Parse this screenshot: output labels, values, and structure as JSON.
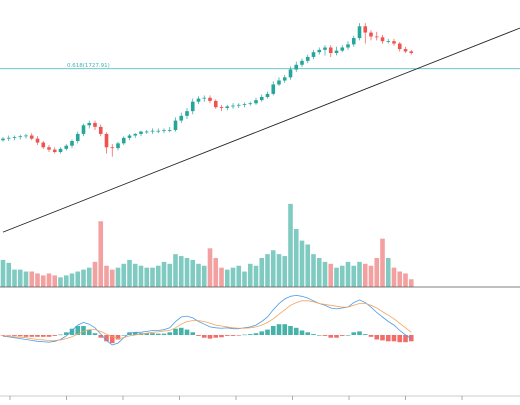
{
  "colors": {
    "up": "#26a69a",
    "down": "#ef5350",
    "volume_up": "#7fcbc2",
    "volume_down": "#f2a0a0",
    "macd_line": "#4c9be8",
    "signal_line": "#f5a35b",
    "fib_line": "#3bb3b3",
    "trendline": "#222222",
    "pane_separator": "#555555"
  },
  "chart_data": [
    {
      "type": "candlestick",
      "name": "price",
      "annotations": [
        {
          "kind": "horizontal-line",
          "label": "0.618(1727.91)",
          "value": 1727.91
        },
        {
          "kind": "trendline",
          "from": {
            "x": 0,
            "y": 1520
          },
          "to": {
            "x": 90,
            "y": 1780
          }
        }
      ],
      "ylim": [
        1510,
        1790
      ],
      "x": [
        0,
        1,
        2,
        3,
        4,
        5,
        6,
        7,
        8,
        9,
        10,
        11,
        12,
        13,
        14,
        15,
        16,
        17,
        18,
        19,
        20,
        21,
        22,
        23,
        24,
        25,
        26,
        27,
        28,
        29,
        30,
        31,
        32,
        33,
        34,
        35,
        36,
        37,
        38,
        39,
        40,
        41,
        42,
        43,
        44,
        45,
        46,
        47,
        48,
        49,
        50,
        51,
        52,
        53,
        54,
        55,
        56,
        57,
        58,
        59,
        60,
        61,
        62,
        63,
        64,
        65,
        66,
        67,
        68,
        69,
        70,
        71
      ],
      "open": [
        1637,
        1639,
        1640,
        1641,
        1642,
        1643,
        1639,
        1634,
        1628,
        1625,
        1622,
        1626,
        1630,
        1636,
        1645,
        1656,
        1659,
        1654,
        1645,
        1628,
        1627,
        1633,
        1640,
        1643,
        1645,
        1648,
        1648,
        1649,
        1649,
        1650,
        1650,
        1662,
        1668,
        1674,
        1686,
        1690,
        1691,
        1687,
        1679,
        1678,
        1680,
        1681,
        1682,
        1683,
        1684,
        1688,
        1692,
        1696,
        1708,
        1713,
        1717,
        1727,
        1733,
        1738,
        1743,
        1749,
        1752,
        1755,
        1748,
        1751,
        1755,
        1759,
        1767,
        1782,
        1774,
        1769,
        1768,
        1763,
        1763,
        1760,
        1753,
        1750
      ],
      "high": [
        1641,
        1643,
        1643,
        1644,
        1645,
        1646,
        1642,
        1636,
        1631,
        1628,
        1628,
        1632,
        1638,
        1648,
        1658,
        1662,
        1662,
        1657,
        1647,
        1632,
        1635,
        1642,
        1645,
        1646,
        1649,
        1650,
        1652,
        1652,
        1652,
        1654,
        1666,
        1672,
        1678,
        1690,
        1693,
        1694,
        1694,
        1689,
        1682,
        1682,
        1684,
        1684,
        1685,
        1686,
        1691,
        1695,
        1699,
        1712,
        1717,
        1720,
        1731,
        1737,
        1741,
        1746,
        1752,
        1755,
        1758,
        1758,
        1756,
        1758,
        1763,
        1770,
        1786,
        1786,
        1777,
        1775,
        1771,
        1766,
        1766,
        1762,
        1756,
        1752
      ],
      "low": [
        1635,
        1636,
        1637,
        1638,
        1639,
        1637,
        1631,
        1626,
        1622,
        1620,
        1620,
        1624,
        1627,
        1633,
        1642,
        1652,
        1650,
        1642,
        1620,
        1616,
        1624,
        1631,
        1637,
        1640,
        1642,
        1645,
        1645,
        1646,
        1646,
        1647,
        1648,
        1659,
        1664,
        1670,
        1683,
        1686,
        1684,
        1677,
        1674,
        1675,
        1677,
        1678,
        1679,
        1681,
        1682,
        1686,
        1690,
        1694,
        1706,
        1710,
        1714,
        1724,
        1730,
        1735,
        1740,
        1746,
        1745,
        1743,
        1745,
        1749,
        1752,
        1756,
        1764,
        1760,
        1764,
        1764,
        1760,
        1760,
        1757,
        1750,
        1748,
        1746
      ],
      "close": [
        1639,
        1640,
        1641,
        1642,
        1643,
        1639,
        1634,
        1628,
        1625,
        1622,
        1626,
        1630,
        1636,
        1645,
        1656,
        1659,
        1654,
        1645,
        1628,
        1627,
        1633,
        1640,
        1643,
        1645,
        1648,
        1648,
        1649,
        1649,
        1650,
        1650,
        1662,
        1668,
        1674,
        1686,
        1690,
        1691,
        1687,
        1679,
        1678,
        1680,
        1681,
        1682,
        1683,
        1684,
        1688,
        1692,
        1696,
        1708,
        1713,
        1717,
        1727,
        1733,
        1738,
        1743,
        1749,
        1752,
        1755,
        1748,
        1751,
        1755,
        1759,
        1767,
        1782,
        1774,
        1769,
        1768,
        1763,
        1763,
        1760,
        1753,
        1750,
        1748
      ]
    },
    {
      "type": "bar",
      "name": "volume",
      "ylim": [
        0,
        90
      ],
      "values": [
        28,
        25,
        18,
        18,
        16,
        16,
        14,
        12,
        14,
        12,
        10,
        12,
        14,
        16,
        18,
        20,
        26,
        68,
        22,
        18,
        20,
        24,
        28,
        24,
        22,
        20,
        20,
        22,
        26,
        24,
        34,
        32,
        30,
        28,
        24,
        22,
        40,
        30,
        20,
        18,
        20,
        22,
        16,
        24,
        22,
        30,
        34,
        38,
        34,
        32,
        86,
        60,
        48,
        44,
        34,
        30,
        26,
        24,
        20,
        22,
        26,
        22,
        26,
        24,
        22,
        30,
        50,
        30,
        20,
        16,
        14,
        8
      ]
    },
    {
      "type": "line",
      "name": "macd",
      "ylim": [
        -1,
        1
      ],
      "series": [
        {
          "key": "macd",
          "values": [
            -0.03,
            -0.04,
            -0.06,
            -0.08,
            -0.1,
            -0.12,
            -0.14,
            -0.15,
            -0.16,
            -0.14,
            -0.1,
            -0.02,
            0.1,
            0.22,
            0.28,
            0.24,
            0.16,
            0.02,
            -0.12,
            -0.22,
            -0.18,
            -0.06,
            0.04,
            0.06,
            0.06,
            0.08,
            0.1,
            0.1,
            0.12,
            0.16,
            0.3,
            0.4,
            0.42,
            0.38,
            0.3,
            0.24,
            0.18,
            0.16,
            0.15,
            0.16,
            0.14,
            0.14,
            0.16,
            0.18,
            0.22,
            0.3,
            0.4,
            0.56,
            0.7,
            0.8,
            0.86,
            0.88,
            0.86,
            0.82,
            0.76,
            0.7,
            0.66,
            0.6,
            0.58,
            0.6,
            0.62,
            0.72,
            0.78,
            0.72,
            0.62,
            0.5,
            0.4,
            0.3,
            0.22,
            0.1,
            0.0,
            -0.08
          ]
        },
        {
          "key": "signal",
          "values": [
            -0.02,
            -0.03,
            -0.04,
            -0.05,
            -0.06,
            -0.08,
            -0.1,
            -0.11,
            -0.12,
            -0.12,
            -0.11,
            -0.08,
            -0.04,
            0.02,
            0.08,
            0.12,
            0.12,
            0.08,
            0.02,
            -0.04,
            -0.08,
            -0.06,
            -0.02,
            0.0,
            0.02,
            0.04,
            0.06,
            0.07,
            0.09,
            0.1,
            0.16,
            0.24,
            0.3,
            0.32,
            0.32,
            0.3,
            0.26,
            0.22,
            0.2,
            0.18,
            0.16,
            0.15,
            0.15,
            0.16,
            0.18,
            0.22,
            0.28,
            0.36,
            0.46,
            0.56,
            0.66,
            0.72,
            0.76,
            0.76,
            0.74,
            0.7,
            0.68,
            0.66,
            0.64,
            0.62,
            0.62,
            0.66,
            0.7,
            0.7,
            0.66,
            0.6,
            0.52,
            0.44,
            0.36,
            0.26,
            0.16,
            0.06
          ]
        }
      ],
      "histogram": [
        -0.01,
        -0.01,
        -0.02,
        -0.03,
        -0.04,
        -0.04,
        -0.04,
        -0.04,
        -0.04,
        -0.02,
        0.01,
        0.06,
        0.14,
        0.2,
        0.2,
        0.12,
        0.04,
        -0.06,
        -0.14,
        -0.18,
        -0.1,
        0.0,
        0.06,
        0.06,
        0.04,
        0.04,
        0.04,
        0.03,
        0.03,
        0.06,
        0.14,
        0.16,
        0.12,
        0.06,
        -0.02,
        -0.06,
        -0.08,
        -0.06,
        -0.05,
        -0.02,
        -0.02,
        -0.01,
        0.01,
        0.02,
        0.04,
        0.08,
        0.12,
        0.2,
        0.24,
        0.24,
        0.2,
        0.16,
        0.1,
        0.06,
        0.02,
        0.0,
        -0.02,
        -0.06,
        -0.06,
        -0.02,
        0.0,
        0.06,
        0.08,
        0.02,
        -0.04,
        -0.1,
        -0.12,
        -0.14,
        -0.14,
        -0.16,
        -0.16,
        -0.14
      ]
    }
  ]
}
